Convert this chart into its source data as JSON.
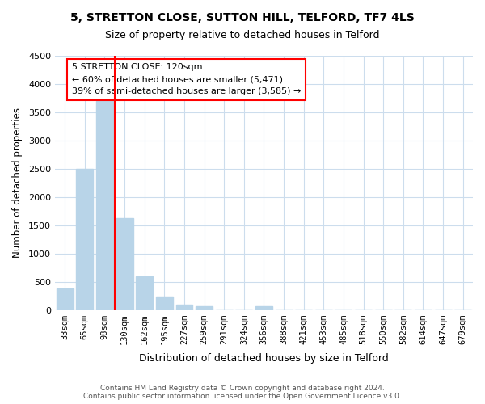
{
  "title1": "5, STRETTON CLOSE, SUTTON HILL, TELFORD, TF7 4LS",
  "title2": "Size of property relative to detached houses in Telford",
  "xlabel": "Distribution of detached houses by size in Telford",
  "ylabel": "Number of detached properties",
  "categories": [
    "33sqm",
    "65sqm",
    "98sqm",
    "130sqm",
    "162sqm",
    "195sqm",
    "227sqm",
    "259sqm",
    "291sqm",
    "324sqm",
    "356sqm",
    "388sqm",
    "421sqm",
    "453sqm",
    "485sqm",
    "518sqm",
    "550sqm",
    "582sqm",
    "614sqm",
    "647sqm",
    "679sqm"
  ],
  "values": [
    375,
    2500,
    3700,
    1620,
    600,
    240,
    100,
    60,
    0,
    0,
    60,
    0,
    0,
    0,
    0,
    0,
    0,
    0,
    0,
    0,
    0
  ],
  "bar_color": "#b8d4e8",
  "vline_color": "red",
  "vline_pos": 2.5,
  "annotation_title": "5 STRETTON CLOSE: 120sqm",
  "annotation_line1": "← 60% of detached houses are smaller (5,471)",
  "annotation_line2": "39% of semi-detached houses are larger (3,585) →",
  "ylim": [
    0,
    4500
  ],
  "yticks": [
    0,
    500,
    1000,
    1500,
    2000,
    2500,
    3000,
    3500,
    4000,
    4500
  ],
  "footer1": "Contains HM Land Registry data © Crown copyright and database right 2024.",
  "footer2": "Contains public sector information licensed under the Open Government Licence v3.0.",
  "bg_color": "#ffffff",
  "grid_color": "#ccdded"
}
